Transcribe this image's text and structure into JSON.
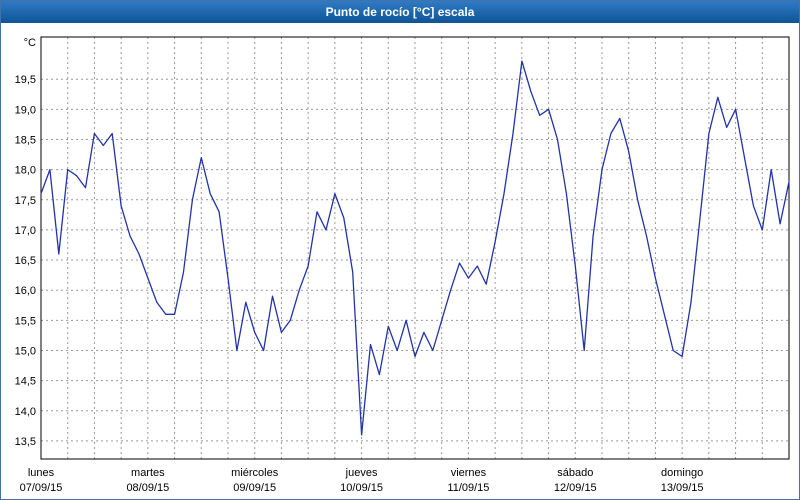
{
  "window": {
    "title": "Punto de rocío [°C] escala"
  },
  "colors": {
    "titlebar_from": "#2e7bc4",
    "titlebar_to": "#0f5496",
    "titlebar_text": "#ffffff",
    "window_border": "#4472a8",
    "grid": "#999999",
    "axis": "#000000",
    "text": "#000000",
    "line": "#2233aa",
    "plot_background": "#ffffff"
  },
  "chart_data": {
    "type": "line",
    "title": "Punto de rocío [°C] escala",
    "y_unit": "°C",
    "ylabel": "",
    "xlabel": "",
    "grid": true,
    "legend_position": "none",
    "ylim": [
      13.2,
      20.2
    ],
    "y_tick_values": [
      19.5,
      19.0,
      18.5,
      18.0,
      17.5,
      17.0,
      16.5,
      16.0,
      15.5,
      15.0,
      14.5,
      14.0,
      13.5
    ],
    "y_tick_labels": [
      "19,5",
      "19,0",
      "18,5",
      "18,0",
      "17,5",
      "17,0",
      "16,5",
      "16,0",
      "15,5",
      "15,0",
      "14,5",
      "14,0",
      "13,5"
    ],
    "x_total_hours": 168,
    "x_step_hours": 2,
    "x_grid_step_hours": 6,
    "days": [
      {
        "name": "lunes",
        "date": "07/09/15"
      },
      {
        "name": "martes",
        "date": "08/09/15"
      },
      {
        "name": "miércoles",
        "date": "09/09/15"
      },
      {
        "name": "jueves",
        "date": "10/09/15"
      },
      {
        "name": "viernes",
        "date": "11/09/15"
      },
      {
        "name": "sábado",
        "date": "12/09/15"
      },
      {
        "name": "domingo",
        "date": "13/09/15"
      }
    ],
    "series": [
      {
        "name": "Punto de rocío",
        "color": "#2233aa",
        "values": [
          17.6,
          18.0,
          16.6,
          18.0,
          17.9,
          17.7,
          18.6,
          18.4,
          18.6,
          17.4,
          16.9,
          16.6,
          16.2,
          15.8,
          15.6,
          15.6,
          16.3,
          17.5,
          18.2,
          17.6,
          17.3,
          16.2,
          15.0,
          15.8,
          15.3,
          15.0,
          15.9,
          15.3,
          15.5,
          16.0,
          16.4,
          17.3,
          17.0,
          17.6,
          17.2,
          16.3,
          13.6,
          15.1,
          14.6,
          15.4,
          15.0,
          15.5,
          14.9,
          15.3,
          15.0,
          15.5,
          16.0,
          16.45,
          16.2,
          16.4,
          16.1,
          16.8,
          17.6,
          18.6,
          19.8,
          19.3,
          18.9,
          19.0,
          18.5,
          17.6,
          16.4,
          15.0,
          16.9,
          18.0,
          18.6,
          18.85,
          18.3,
          17.5,
          16.9,
          16.2,
          15.6,
          15.0,
          14.9,
          15.8,
          17.2,
          18.6,
          19.2,
          18.7,
          19.0,
          18.2,
          17.4,
          17.0,
          18.0,
          17.1,
          17.8
        ]
      }
    ]
  }
}
